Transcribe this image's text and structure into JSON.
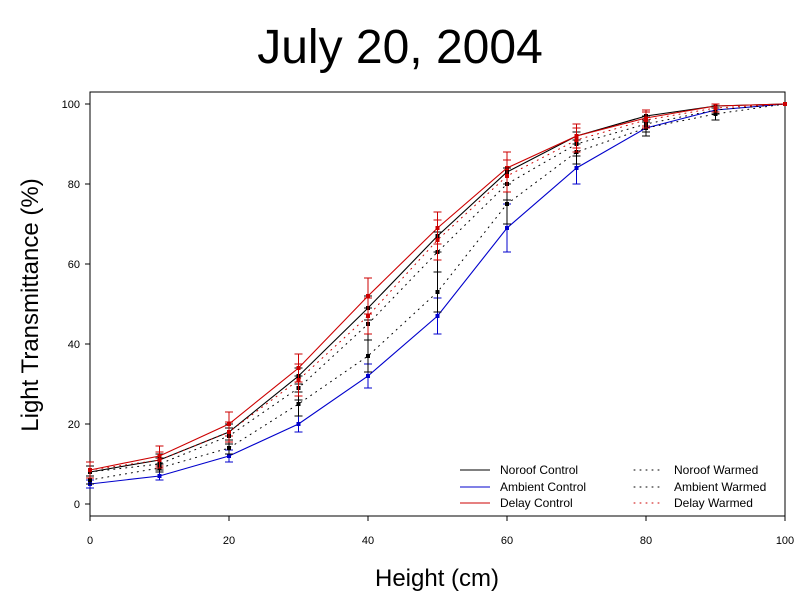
{
  "chart_data": {
    "type": "line",
    "title": "July 20, 2004",
    "xlabel": "Height (cm)",
    "ylabel": "Light Transmittance (%)",
    "xlim": [
      0,
      100
    ],
    "ylim": [
      0,
      100
    ],
    "xticks": [
      0,
      20,
      40,
      60,
      80,
      100
    ],
    "yticks": [
      0,
      20,
      40,
      60,
      80,
      100
    ],
    "grid": false,
    "legend_position": "bottom-right",
    "x": [
      0,
      10,
      20,
      30,
      40,
      50,
      60,
      70,
      80,
      90,
      100
    ],
    "series": [
      {
        "name": "Noroof Control",
        "color": "#000000",
        "style": "solid",
        "values": [
          8,
          11,
          18,
          32,
          49,
          67,
          83,
          92,
          97,
          99.5,
          100
        ],
        "errors": [
          1.5,
          1.5,
          2,
          2,
          3,
          4,
          3,
          2,
          1.5,
          0.5,
          0
        ]
      },
      {
        "name": "Ambient Control",
        "color": "#0000cc",
        "style": "solid",
        "values": [
          5,
          7,
          12,
          20,
          32,
          47,
          69,
          84,
          94,
          98.5,
          100
        ],
        "errors": [
          1,
          1,
          1.5,
          2,
          3,
          4.5,
          6,
          4,
          2,
          1,
          0
        ]
      },
      {
        "name": "Delay Control",
        "color": "#cc0000",
        "style": "solid",
        "values": [
          8.5,
          12,
          20,
          34,
          52,
          69,
          84,
          92,
          96.5,
          99.5,
          100
        ],
        "errors": [
          2,
          2.5,
          3,
          3.5,
          4.5,
          4,
          4,
          3,
          2,
          0.5,
          0
        ]
      },
      {
        "name": "Noroof Warmed",
        "color": "#000000",
        "style": "dotted",
        "values": [
          8,
          10,
          17,
          29,
          45,
          63,
          80,
          90,
          95,
          98.5,
          100
        ],
        "errors": [
          1.5,
          1.5,
          2,
          3,
          4,
          5,
          4,
          3,
          2,
          1,
          0
        ]
      },
      {
        "name": "Ambient Warmed",
        "color": "#000000",
        "style": "dotted",
        "values": [
          6,
          9,
          14,
          25,
          37,
          53,
          75,
          88,
          94,
          97.5,
          100
        ],
        "errors": [
          1,
          1,
          1.5,
          3,
          4,
          5,
          5,
          3,
          2,
          1.5,
          0
        ]
      },
      {
        "name": "Delay Warmed",
        "color": "#cc0000",
        "style": "dotted",
        "values": [
          8.5,
          11,
          18,
          31,
          47,
          66,
          82,
          91,
          96,
          99,
          100
        ],
        "errors": [
          2,
          2,
          2.5,
          4,
          4.5,
          5,
          4,
          3,
          2,
          1,
          0
        ]
      }
    ]
  }
}
